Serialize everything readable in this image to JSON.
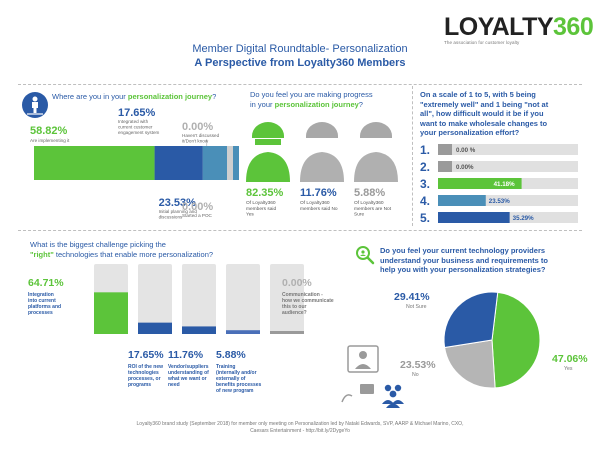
{
  "header": {
    "logo_text": "LOYALTY",
    "logo_number": "360",
    "logo_tagline": "The association for customer loyalty",
    "title": "Member Digital Roundtable- Personalization",
    "subtitle": "A Perspective from Loyalty360 Members"
  },
  "q1": {
    "question_prefix": "Where are you in your ",
    "question_emphasis": "personalization journey",
    "question_suffix": "?"
  },
  "q2": {
    "question_line1": "Do you feel you are making progress",
    "question_prefix": "in your ",
    "question_emphasis": "personalization journey",
    "question_suffix": "?"
  },
  "q3": {
    "question_line1": "On a scale of 1 to 5, with 5 being",
    "question_line2": "\"extremely well\" and 1 being \"not at",
    "question_line3": "all\", how difficult would it be if you",
    "question_line4": "want to make wholesale changes to",
    "question_line5": "your personalization effort?"
  },
  "q4": {
    "question_line1": "What is the biggest challenge picking the",
    "question_emphasis": "\"right\"",
    "question_suffix": " technologies that enable more personalization?"
  },
  "q5": {
    "question_line1": "Do you feel your current technology providers",
    "question_line2": "understand your business and requirements to",
    "question_line3": "help you with your personalization strategies?"
  },
  "footer": {
    "line1": "Loyalty360 brand study (September 2018) for member only meeting on Personalization led by Nataki Edwards, SVP, AARP & Michael Marino, CXO,",
    "line2": "Caesars Entertainment - http://bit.ly/2DygeYo"
  },
  "colors": {
    "green": "#5cc43a",
    "blue": "#2a5aa6",
    "teal": "#4a8fb8",
    "grey": "#9a9a9a",
    "track": "#e0e0e0"
  },
  "chart_data": [
    {
      "type": "bar",
      "orientation": "horizontal-stacked",
      "question": "Where are you in your personalization journey?",
      "categories": [
        "Are implementing it",
        "Initial planning and discussions",
        "Integrated with current customer engagement system",
        "Haven't discussed it/Don't know",
        "Started a POC"
      ],
      "values": [
        58.82,
        23.53,
        17.65,
        0.0,
        0.0
      ],
      "labels": [
        "58.82%",
        "23.53%",
        "17.65%",
        "0.00%",
        "0.00%"
      ],
      "colors": [
        "#5cc43a",
        "#2a5aa6",
        "#4a8fb8",
        "#cfcfcf",
        "#e6e6e6"
      ]
    },
    {
      "type": "bar",
      "orientation": "icons",
      "question": "Do you feel you are making progress in your personalization journey?",
      "categories": [
        "Yes",
        "No",
        "Not Sure"
      ],
      "values": [
        82.35,
        11.76,
        5.88
      ],
      "labels": [
        "82.35%",
        "11.76%",
        "5.88%"
      ],
      "captions": [
        "Of Loyalty360 members said Yes",
        "Of Loyalty360 members said No",
        "Of Loyalty360 members are Not Sure"
      ]
    },
    {
      "type": "bar",
      "orientation": "horizontal",
      "question": "How difficult would it be to make wholesale changes to your personalization effort?",
      "categories": [
        "1.",
        "2.",
        "3.",
        "4.",
        "5."
      ],
      "values": [
        0.0,
        0.0,
        41.18,
        23.53,
        35.29
      ],
      "labels": [
        "0.00 %",
        "0.00%",
        "41.18%",
        "23.53%",
        "35.29%"
      ],
      "colors": [
        "#9a9a9a",
        "#9a9a9a",
        "#5cc43a",
        "#4a8fb8",
        "#2a5aa6"
      ],
      "xlim": [
        0,
        100
      ]
    },
    {
      "type": "bar",
      "orientation": "vertical",
      "question": "What is the biggest challenge picking the right technologies that enable more personalization?",
      "categories": [
        "Integration into current platforms and processes",
        "ROI of the new technologies processes, or programs",
        "Vendor/suppliers understanding of what we want or need",
        "Training (internally and/or externally of benefits processes of new program",
        "Communication - how we communicate this to our audience?"
      ],
      "values": [
        64.71,
        17.65,
        11.76,
        5.88,
        0.0
      ],
      "labels": [
        "64.71%",
        "17.65%",
        "11.76%",
        "5.88%",
        "0.00%"
      ],
      "colors": [
        "#5cc43a",
        "#2a5aa6",
        "#2a5aa6",
        "#4a6fb8",
        "#9a9a9a"
      ],
      "ylim": [
        0,
        100
      ]
    },
    {
      "type": "pie",
      "question": "Do you feel your current technology providers understand your business and requirements to help you with your personalization strategies?",
      "categories": [
        "Yes",
        "No",
        "Not Sure"
      ],
      "values": [
        47.06,
        23.53,
        29.41
      ],
      "labels": [
        "47.06%",
        "23.53%",
        "29.41%"
      ],
      "colors": [
        "#5cc43a",
        "#b5b5b5",
        "#2a5aa6"
      ]
    }
  ]
}
